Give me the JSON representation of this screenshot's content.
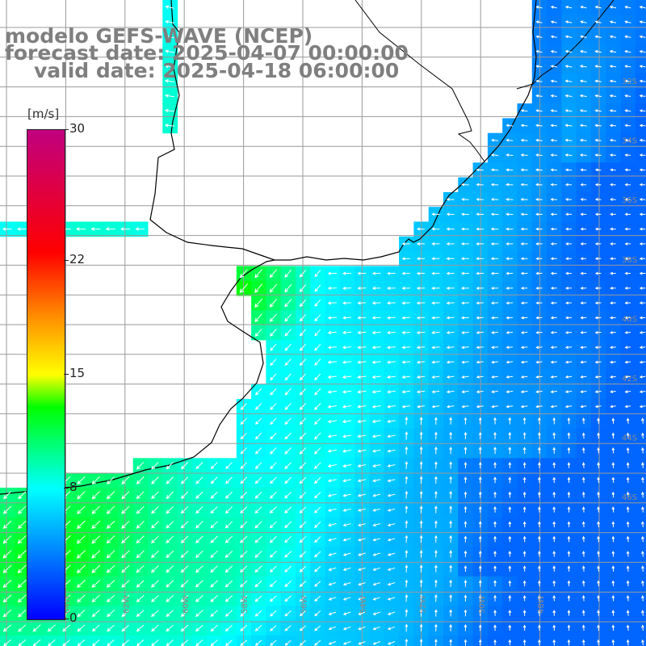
{
  "title": {
    "line1": "modelo GEFS-WAVE (NCEP)",
    "line2": "forecast date: 2025-04-07 00:00:00",
    "line3": "valid date: 2025-04-18 06:00:00"
  },
  "colorbar": {
    "units": "[m/s]",
    "ticks": [
      "30",
      "22",
      "15",
      "8",
      "0"
    ],
    "tick_values": [
      30,
      22,
      15,
      8,
      0
    ],
    "range": [
      0,
      30
    ],
    "colors": [
      "#0000ff",
      "#00ffff",
      "#00ff00",
      "#ffff00",
      "#ff8c00",
      "#ff0000",
      "#c00080"
    ]
  },
  "map": {
    "lon_labels": [
      "64W",
      "62W",
      "60W",
      "58W",
      "56W",
      "54W",
      "52W",
      "50W",
      "48W"
    ],
    "lat_labels": [
      "32S",
      "34S",
      "36S",
      "38S",
      "40S",
      "42S",
      "44S",
      "46S"
    ],
    "land_color": "#ffffff",
    "coast_color": "#000000",
    "grid_color": "#999999",
    "arrow_color": "#ffffff"
  }
}
